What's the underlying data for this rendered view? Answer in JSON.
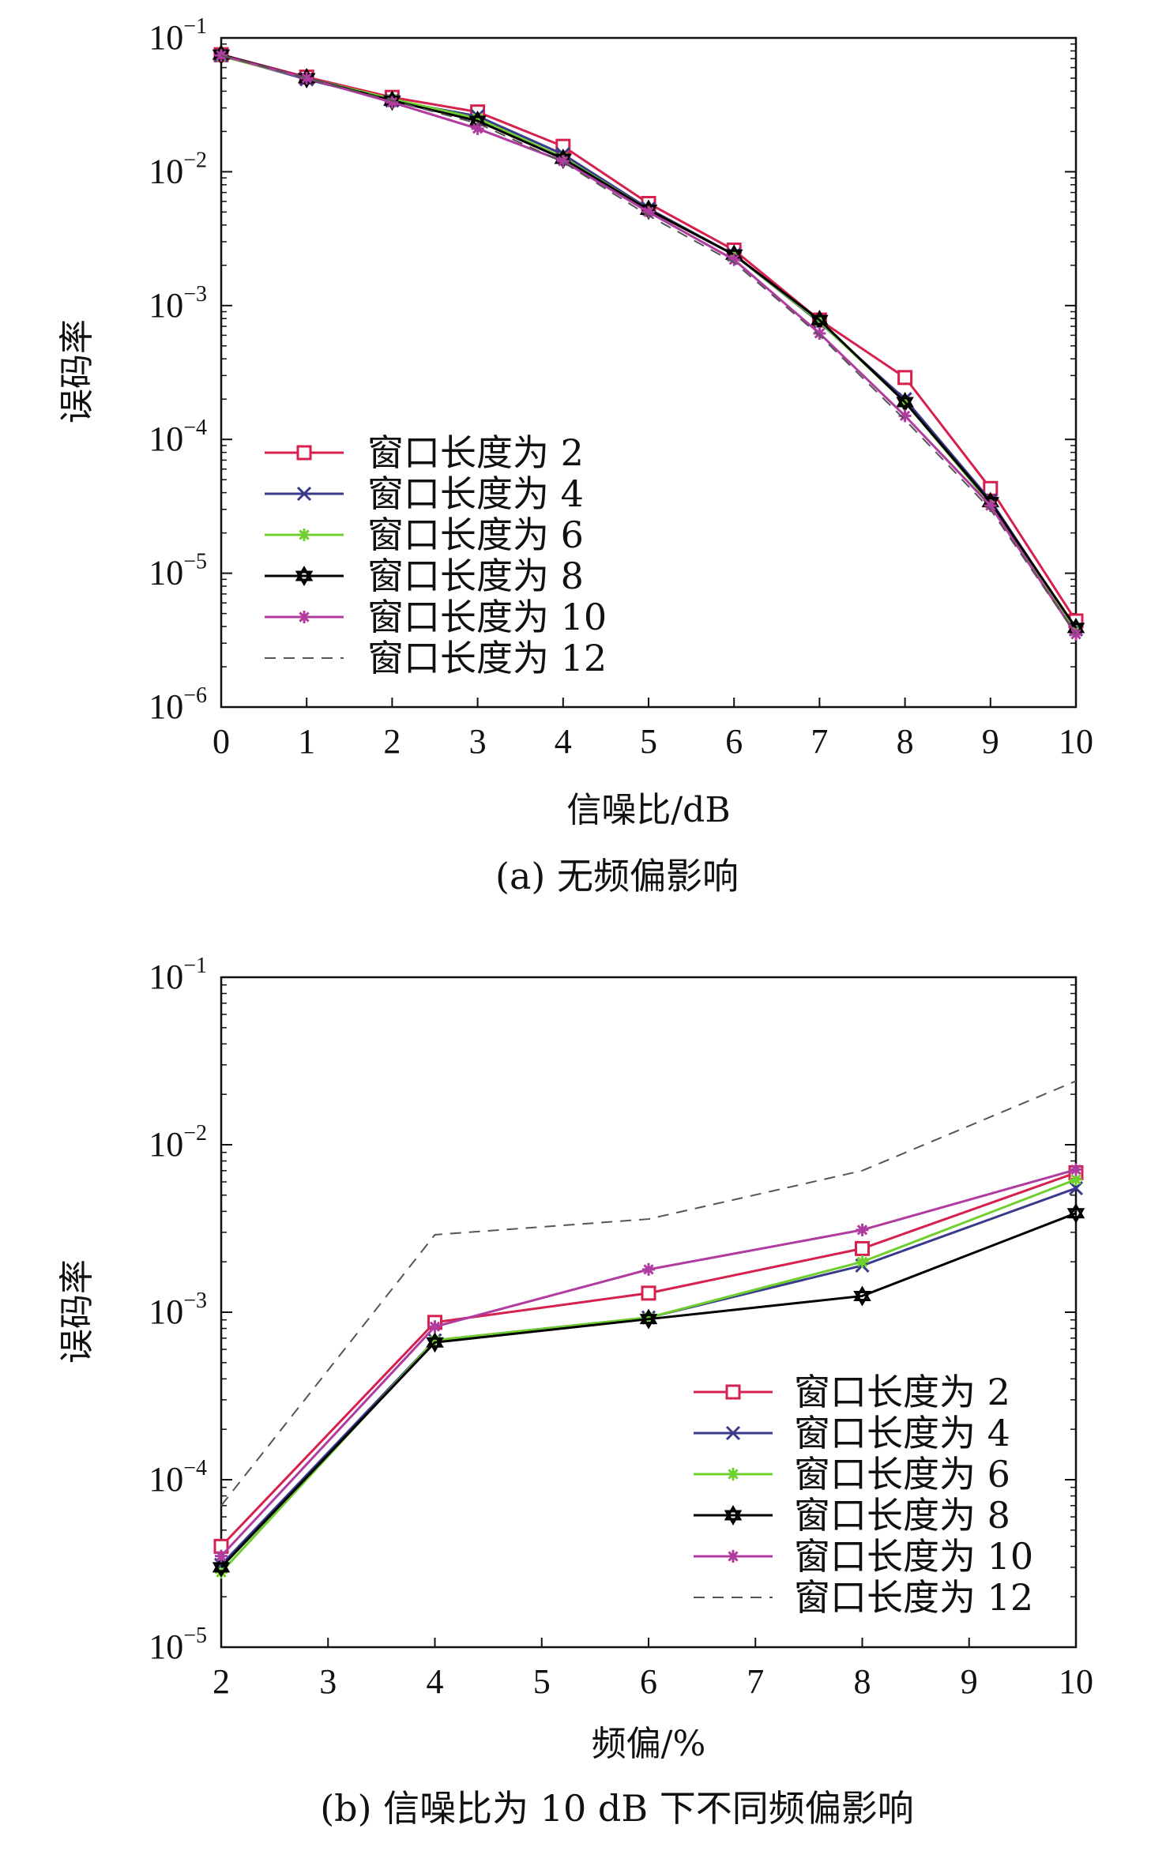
{
  "chart_data": [
    {
      "type": "line",
      "ylabel": "误码率",
      "xlabel": "信噪比/dB",
      "caption": "(a) 无频偏影响",
      "xlim": [
        0,
        10
      ],
      "ylim": [
        1e-06,
        0.1
      ],
      "yscale": "log",
      "x_ticks": [
        "0",
        "1",
        "2",
        "3",
        "4",
        "5",
        "6",
        "7",
        "8",
        "9",
        "10"
      ],
      "y_ticks": [
        {
          "base": "10",
          "exp": "−1",
          "v": 0.1
        },
        {
          "base": "10",
          "exp": "−2",
          "v": 0.01
        },
        {
          "base": "10",
          "exp": "−3",
          "v": 0.001
        },
        {
          "base": "10",
          "exp": "−4",
          "v": 0.0001
        },
        {
          "base": "10",
          "exp": "−5",
          "v": 1e-05
        },
        {
          "base": "10",
          "exp": "−6",
          "v": 1e-06
        }
      ],
      "legend_position": "lower-left",
      "x": [
        0,
        1,
        2,
        3,
        4,
        5,
        6,
        7,
        8,
        9,
        10
      ],
      "series": [
        {
          "name": "窗口长度为 2",
          "color": "#d6204e",
          "marker": "square",
          "dash": false,
          "values": [
            0.075,
            0.051,
            0.036,
            0.028,
            0.0155,
            0.0058,
            0.0026,
            0.00078,
            0.00029,
            4.3e-05,
            4.4e-06
          ]
        },
        {
          "name": "窗口长度为 4",
          "color": "#3a3a8c",
          "marker": "x",
          "dash": false,
          "values": [
            0.074,
            0.049,
            0.034,
            0.026,
            0.0135,
            0.0053,
            0.0024,
            0.00075,
            0.0002,
            3.5e-05,
            3.8e-06
          ]
        },
        {
          "name": "窗口长度为 6",
          "color": "#6fcf2f",
          "marker": "asterisk",
          "dash": false,
          "values": [
            0.073,
            0.05,
            0.035,
            0.025,
            0.0128,
            0.0052,
            0.0024,
            0.00076,
            0.00019,
            3.3e-05,
            3.7e-06
          ]
        },
        {
          "name": "窗口长度为 8",
          "color": "#000000",
          "marker": "star",
          "dash": false,
          "values": [
            0.075,
            0.05,
            0.034,
            0.024,
            0.0125,
            0.0052,
            0.0024,
            0.00078,
            0.00019,
            3.4e-05,
            3.9e-06
          ]
        },
        {
          "name": "窗口长度为 10",
          "color": "#b03ca0",
          "marker": "asterisk",
          "dash": false,
          "values": [
            0.074,
            0.05,
            0.033,
            0.021,
            0.012,
            0.005,
            0.0022,
            0.00062,
            0.00015,
            3.2e-05,
            3.5e-06
          ]
        },
        {
          "name": "窗口长度为 12",
          "color": "#555555",
          "marker": "none",
          "dash": true,
          "values": [
            0.074,
            0.05,
            0.034,
            0.023,
            0.0118,
            0.0047,
            0.0021,
            0.0006,
            0.00014,
            3e-05,
            3.5e-06
          ]
        }
      ]
    },
    {
      "type": "line",
      "ylabel": "误码率",
      "xlabel": "频偏/%",
      "caption": "(b) 信噪比为 10 dB 下不同频偏影响",
      "xlim": [
        2,
        10
      ],
      "ylim": [
        1e-05,
        0.1
      ],
      "yscale": "log",
      "x_ticks": [
        "2",
        "3",
        "4",
        "5",
        "6",
        "7",
        "8",
        "9",
        "10"
      ],
      "y_ticks": [
        {
          "base": "10",
          "exp": "−1",
          "v": 0.1
        },
        {
          "base": "10",
          "exp": "−2",
          "v": 0.01
        },
        {
          "base": "10",
          "exp": "−3",
          "v": 0.001
        },
        {
          "base": "10",
          "exp": "−4",
          "v": 0.0001
        },
        {
          "base": "10",
          "exp": "−5",
          "v": 1e-05
        }
      ],
      "legend_position": "lower-right",
      "x": [
        2,
        4,
        6,
        8,
        10
      ],
      "series": [
        {
          "name": "窗口长度为 2",
          "color": "#d6204e",
          "marker": "square",
          "dash": false,
          "values": [
            4e-05,
            0.00087,
            0.0013,
            0.0024,
            0.0068
          ]
        },
        {
          "name": "窗口长度为 4",
          "color": "#3a3a8c",
          "marker": "x",
          "dash": false,
          "values": [
            3.1e-05,
            0.00068,
            0.00093,
            0.0019,
            0.0055
          ]
        },
        {
          "name": "窗口长度为 6",
          "color": "#6fcf2f",
          "marker": "asterisk",
          "dash": false,
          "values": [
            2.8e-05,
            0.00068,
            0.00093,
            0.002,
            0.0062
          ]
        },
        {
          "name": "窗口长度为 8",
          "color": "#000000",
          "marker": "star",
          "dash": false,
          "values": [
            3e-05,
            0.00066,
            0.00091,
            0.00125,
            0.0039
          ]
        },
        {
          "name": "窗口长度为 10",
          "color": "#b03ca0",
          "marker": "asterisk",
          "dash": false,
          "values": [
            3.5e-05,
            0.00082,
            0.0018,
            0.0031,
            0.0071
          ]
        },
        {
          "name": "窗口长度为 12",
          "color": "#555555",
          "marker": "none",
          "dash": true,
          "values": [
            7e-05,
            0.0029,
            0.0036,
            0.007,
            0.024
          ]
        }
      ]
    }
  ]
}
